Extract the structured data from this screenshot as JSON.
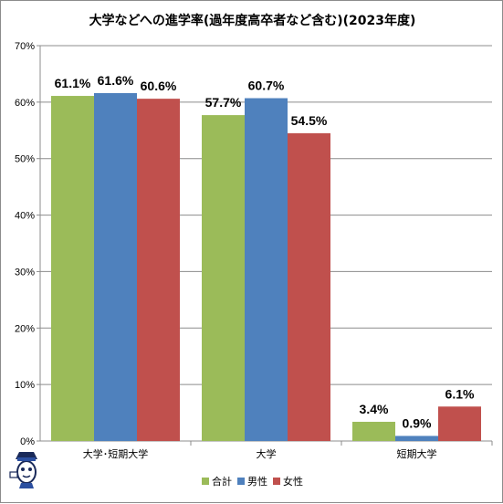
{
  "chart_data": {
    "type": "bar",
    "title": "大学などへの進学率(過年度高卒者など含む)(2023年度)",
    "categories": [
      "大学･短期大学",
      "大学",
      "短期大学"
    ],
    "series": [
      {
        "name": "合計",
        "values": [
          61.1,
          57.7,
          3.4
        ],
        "color": "#9BBB59"
      },
      {
        "name": "男性",
        "values": [
          61.6,
          60.7,
          0.9
        ],
        "color": "#4F81BD"
      },
      {
        "name": "女性",
        "values": [
          60.6,
          54.5,
          6.1
        ],
        "color": "#C0504D"
      }
    ],
    "data_labels": [
      [
        "61.1%",
        "61.6%",
        "60.6%"
      ],
      [
        "57.7%",
        "60.7%",
        "54.5%"
      ],
      [
        "3.4%",
        "0.9%",
        "6.1%"
      ]
    ],
    "ylim": [
      0,
      70
    ],
    "yticks": [
      "0%",
      "10%",
      "20%",
      "30%",
      "40%",
      "50%",
      "60%",
      "70%"
    ],
    "grid": true,
    "legend_position": "bottom"
  }
}
